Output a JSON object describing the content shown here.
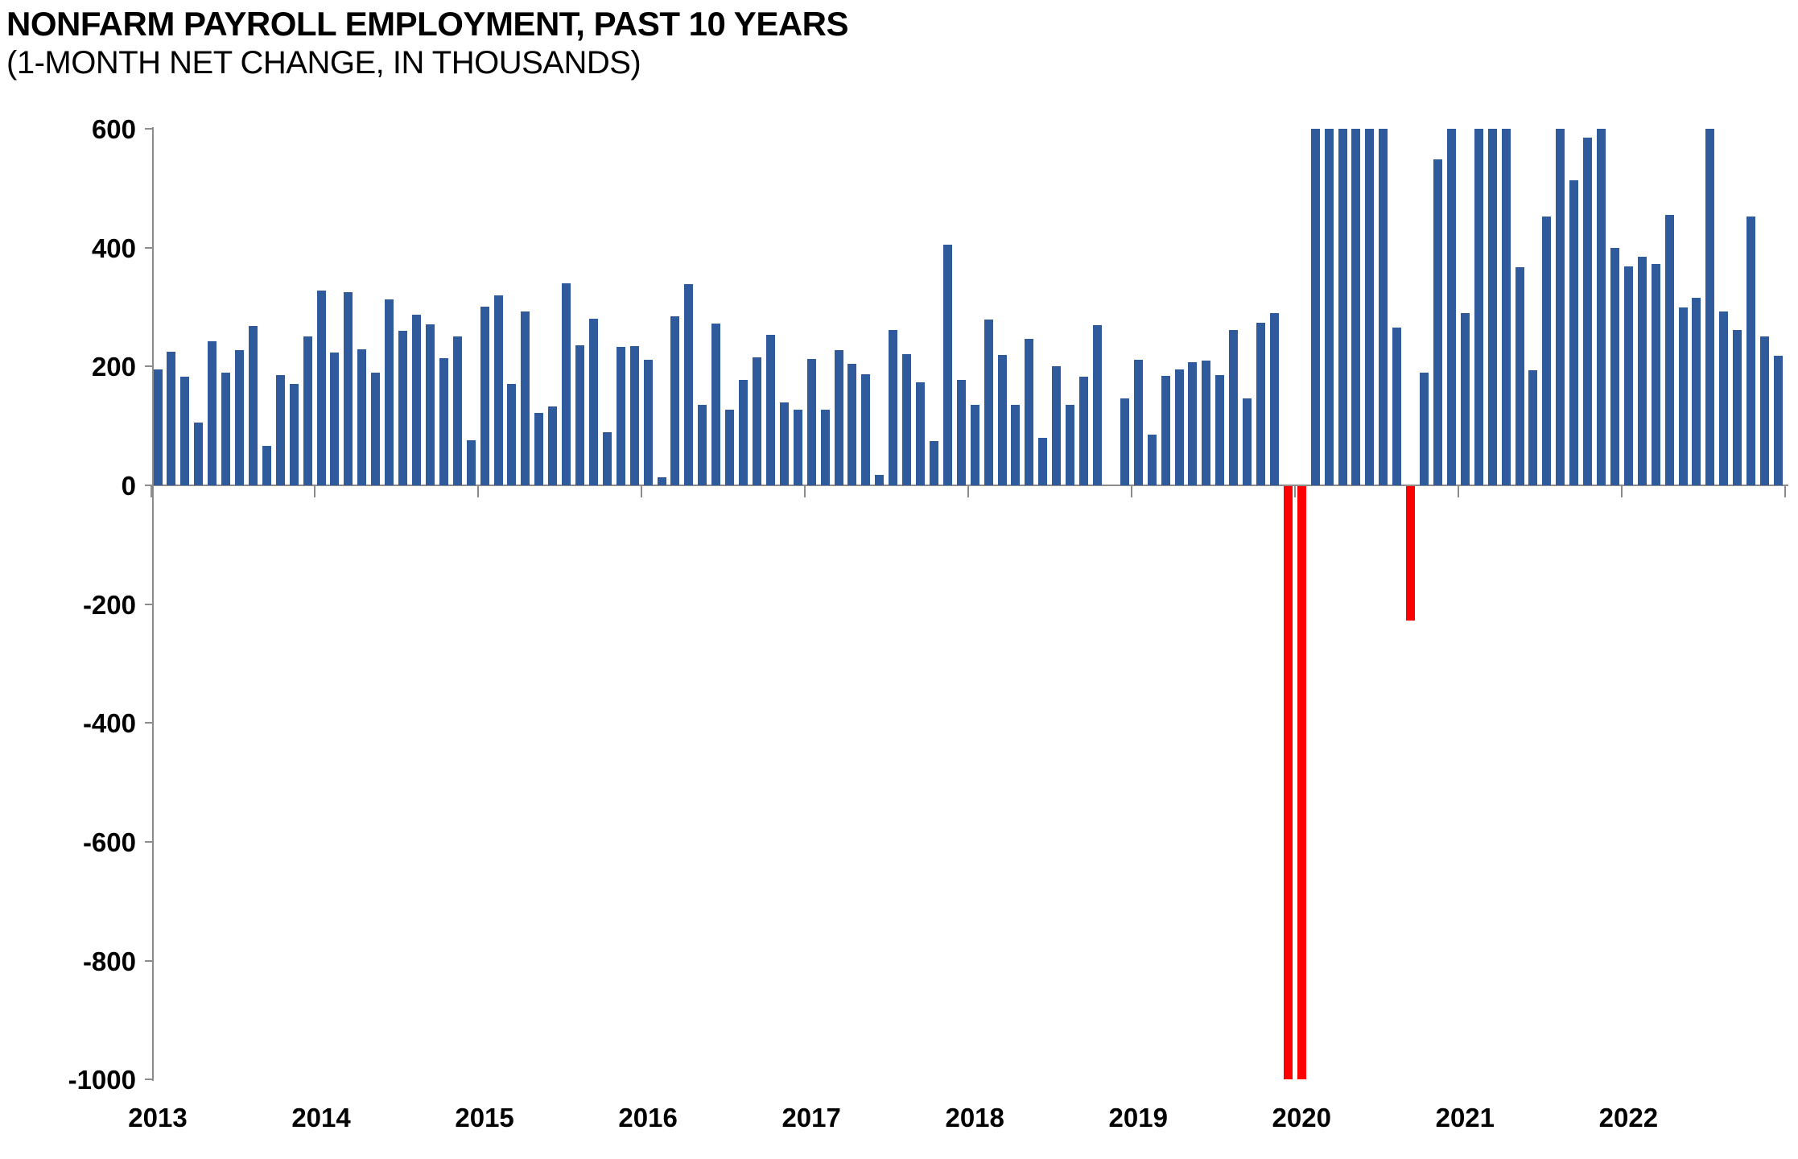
{
  "title": "NONFARM PAYROLL EMPLOYMENT, PAST 10 YEARS",
  "subtitle": "(1-MONTH NET CHANGE, IN THOUSANDS)",
  "chart_data": {
    "type": "bar",
    "title": "NONFARM PAYROLL EMPLOYMENT, PAST 10 YEARS",
    "subtitle": "(1-MONTH NET CHANGE, IN THOUSANDS)",
    "xlabel": "",
    "ylabel": "",
    "ylim": [
      -1000,
      600
    ],
    "yticks": [
      600,
      400,
      200,
      0,
      -200,
      -400,
      -600,
      -800,
      -1000
    ],
    "xtick_labels": [
      "2013",
      "2014",
      "2015",
      "2016",
      "2017",
      "2018",
      "2019",
      "2020",
      "2021",
      "2022"
    ],
    "grid": false,
    "legend": null,
    "months": [
      "2013-04",
      "2013-05",
      "2013-06",
      "2013-07",
      "2013-08",
      "2013-09",
      "2013-10",
      "2013-11",
      "2013-12",
      "2014-01",
      "2014-02",
      "2014-03",
      "2014-04",
      "2014-05",
      "2014-06",
      "2014-07",
      "2014-08",
      "2014-09",
      "2014-10",
      "2014-11",
      "2014-12",
      "2015-01",
      "2015-02",
      "2015-03",
      "2015-04",
      "2015-05",
      "2015-06",
      "2015-07",
      "2015-08",
      "2015-09",
      "2015-10",
      "2015-11",
      "2015-12",
      "2016-01",
      "2016-02",
      "2016-03",
      "2016-04",
      "2016-05",
      "2016-06",
      "2016-07",
      "2016-08",
      "2016-09",
      "2016-10",
      "2016-11",
      "2016-12",
      "2017-01",
      "2017-02",
      "2017-03",
      "2017-04",
      "2017-05",
      "2017-06",
      "2017-07",
      "2017-08",
      "2017-09",
      "2017-10",
      "2017-11",
      "2017-12",
      "2018-01",
      "2018-02",
      "2018-03",
      "2018-04",
      "2018-05",
      "2018-06",
      "2018-07",
      "2018-08",
      "2018-09",
      "2018-10",
      "2018-11",
      "2018-12",
      "2019-01",
      "2019-02",
      "2019-03",
      "2019-04",
      "2019-05",
      "2019-06",
      "2019-07",
      "2019-08",
      "2019-09",
      "2019-10",
      "2019-11",
      "2019-12",
      "2020-01",
      "2020-02",
      "2020-03",
      "2020-04",
      "2020-05",
      "2020-06",
      "2020-07",
      "2020-08",
      "2020-09",
      "2020-10",
      "2020-11",
      "2020-12",
      "2021-01",
      "2021-02",
      "2021-03",
      "2021-04",
      "2021-05",
      "2021-06",
      "2021-07",
      "2021-08",
      "2021-09",
      "2021-10",
      "2021-11",
      "2021-12",
      "2022-01",
      "2022-02",
      "2022-03",
      "2022-04",
      "2022-05",
      "2022-06",
      "2022-07",
      "2022-08",
      "2022-09",
      "2022-10",
      "2022-11",
      "2022-12",
      "2023-01",
      "2023-02",
      "2023-03"
    ],
    "values": [
      195,
      225,
      183,
      105,
      242,
      190,
      228,
      268,
      66,
      185,
      170,
      250,
      328,
      223,
      325,
      229,
      190,
      313,
      260,
      287,
      271,
      214,
      251,
      76,
      301,
      319,
      171,
      293,
      122,
      133,
      340,
      236,
      280,
      89,
      233,
      234,
      211,
      14,
      284,
      338,
      135,
      272,
      127,
      177,
      216,
      253,
      140,
      127,
      213,
      127,
      228,
      204,
      187,
      17,
      261,
      221,
      174,
      75,
      405,
      177,
      136,
      279,
      220,
      135,
      246,
      80,
      201,
      135,
      183,
      270,
      0,
      146,
      211,
      85,
      184,
      195,
      207,
      210,
      186,
      262,
      146,
      274,
      290,
      -1000,
      -1000,
      600,
      600,
      600,
      600,
      600,
      600,
      265,
      -227,
      190,
      549,
      600,
      290,
      600,
      600,
      600,
      367,
      194,
      453,
      600,
      513,
      585,
      600,
      399,
      368,
      385,
      373,
      455,
      300,
      315,
      600,
      292,
      262,
      453,
      250,
      218
    ],
    "clipped_below_months": [
      "2020-03",
      "2020-04"
    ],
    "clipped_above_months": [
      "2020-05",
      "2020-06",
      "2020-07",
      "2020-08",
      "2020-09",
      "2020-10",
      "2021-03",
      "2021-05",
      "2021-06",
      "2021-07",
      "2021-11",
      "2022-02",
      "2022-10"
    ],
    "negative_months": [
      "2020-03",
      "2020-04",
      "2020-12"
    ],
    "colors": {
      "positive_bar": "#2F5A9B",
      "negative_bar": "#FF0000",
      "axis": "#8C8C8C",
      "text": "#000000",
      "background": "#FFFFFF"
    }
  }
}
